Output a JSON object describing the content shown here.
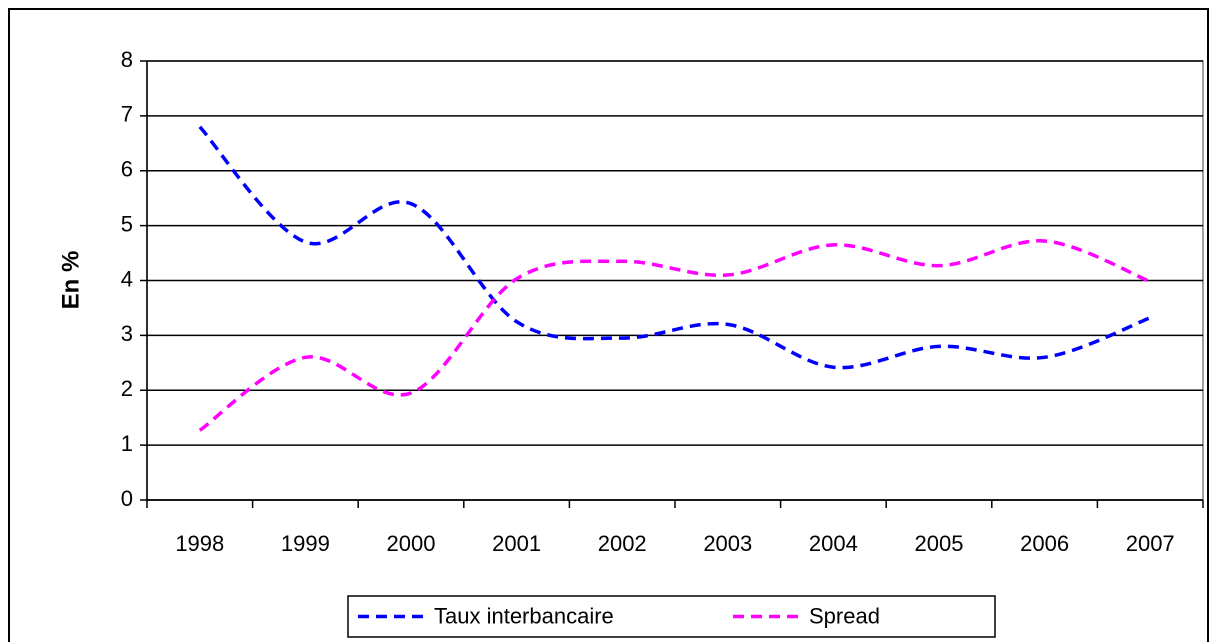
{
  "chart_data": {
    "type": "line",
    "y_label": "En %",
    "categories": [
      "1998",
      "1999",
      "2000",
      "2001",
      "2002",
      "2003",
      "2004",
      "2005",
      "2006",
      "2007"
    ],
    "series": [
      {
        "name": "Taux interbancaire",
        "color": "#0000ff",
        "values": [
          6.8,
          4.7,
          5.4,
          3.25,
          2.95,
          3.2,
          2.42,
          2.8,
          2.6,
          3.32
        ]
      },
      {
        "name": "Spread",
        "color": "#ff00ff",
        "values": [
          1.27,
          2.6,
          1.95,
          4.03,
          4.35,
          4.1,
          4.65,
          4.27,
          4.72,
          3.98
        ]
      }
    ],
    "ylim": [
      0,
      8
    ],
    "yticks": [
      0,
      1,
      2,
      3,
      4,
      5,
      6,
      7,
      8
    ],
    "grid": true,
    "legend": "bottom"
  }
}
